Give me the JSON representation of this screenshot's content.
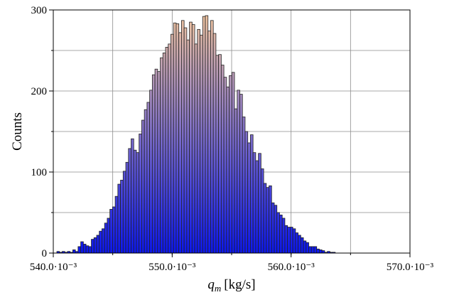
{
  "chart_data": {
    "type": "bar",
    "title": "",
    "xlabel_symbol": "q",
    "xlabel_subscript": "m",
    "xlabel_unit": "[kg/s]",
    "ylabel": "Counts",
    "xlim": [
      0.54,
      0.57
    ],
    "ylim": [
      0,
      300
    ],
    "x_ticks": [
      0.54,
      0.55,
      0.56,
      0.57
    ],
    "x_tick_labels": [
      "540.0·10⁻³",
      "550.0·10⁻³",
      "560.0·10⁻³",
      "570.0·10⁻³"
    ],
    "y_ticks": [
      0,
      100,
      200,
      300
    ],
    "y_tick_labels": [
      "0",
      "100",
      "200",
      "300"
    ],
    "grid": true,
    "bin_start": 0.5403,
    "bin_width": 0.000223,
    "bar_fill_gradient": {
      "top": "#f5c9a0",
      "bottom": "#0b16f0"
    },
    "counts": [
      2,
      1,
      2,
      1,
      2,
      1,
      4,
      2,
      8,
      14,
      11,
      9,
      8,
      17,
      19,
      22,
      27,
      30,
      37,
      43,
      54,
      57,
      70,
      85,
      90,
      101,
      112,
      129,
      141,
      127,
      124,
      147,
      164,
      177,
      186,
      201,
      220,
      227,
      224,
      241,
      247,
      254,
      258,
      270,
      284,
      283,
      272,
      287,
      278,
      263,
      285,
      282,
      258,
      276,
      269,
      292,
      293,
      274,
      287,
      271,
      244,
      245,
      232,
      217,
      205,
      219,
      223,
      178,
      201,
      196,
      168,
      150,
      136,
      146,
      124,
      114,
      123,
      104,
      86,
      81,
      83,
      62,
      59,
      50,
      47,
      43,
      34,
      32,
      32,
      30,
      25,
      22,
      19,
      15,
      13,
      8,
      8,
      8,
      5,
      4,
      3,
      1,
      2,
      1,
      1
    ]
  }
}
